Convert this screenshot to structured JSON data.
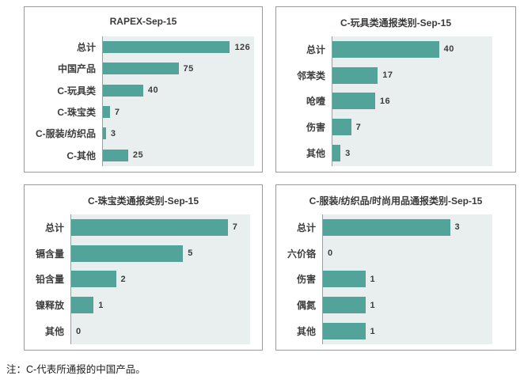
{
  "page": {
    "note": "注：C-代表所通报的中国产品。"
  },
  "colors": {
    "bar": "#52A39A",
    "plot_bg": "#E9EFEE",
    "panel_border": "#9B9B9B",
    "axis_line": "#9E9E9E",
    "label_text": "#3D3D3D",
    "title_text": "#3A3A3A",
    "note_text": "#1C1C1C"
  },
  "chart_data": [
    {
      "type": "bar",
      "orientation": "horizontal",
      "title": "RAPEX-Sep-15",
      "categories": [
        "总计",
        "中国产品",
        "C-玩具类",
        "C-珠宝类",
        "C-服装/纺织品",
        "C-其他"
      ],
      "values": [
        126,
        75,
        40,
        7,
        3,
        25
      ],
      "xlim": [
        0,
        150
      ],
      "grid": false,
      "legend": false,
      "data_labels": true
    },
    {
      "type": "bar",
      "orientation": "horizontal",
      "title": "C-玩具类通报类别-Sep-15",
      "categories": [
        "总计",
        "邻苯类",
        "呛噎",
        "伤害",
        "其他"
      ],
      "values": [
        40,
        17,
        16,
        7,
        3
      ],
      "xlim": [
        0,
        60
      ],
      "grid": false,
      "legend": false,
      "data_labels": true
    },
    {
      "type": "bar",
      "orientation": "horizontal",
      "title": "C-珠宝类通报类别-Sep-15",
      "categories": [
        "总计",
        "镉含量",
        "铅含量",
        "镍释放",
        "其他"
      ],
      "values": [
        7,
        5,
        2,
        1,
        0
      ],
      "xlim": [
        0,
        8
      ],
      "grid": false,
      "legend": false,
      "data_labels": true
    },
    {
      "type": "bar",
      "orientation": "horizontal",
      "title": "C-服装/纺织品/时尚用品通报类别-Sep-15",
      "categories": [
        "总计",
        "六价铬",
        "伤害",
        "偶氮",
        "其他"
      ],
      "values": [
        3,
        0,
        1,
        1,
        1
      ],
      "xlim": [
        0,
        4
      ],
      "grid": false,
      "legend": false,
      "data_labels": true
    }
  ]
}
